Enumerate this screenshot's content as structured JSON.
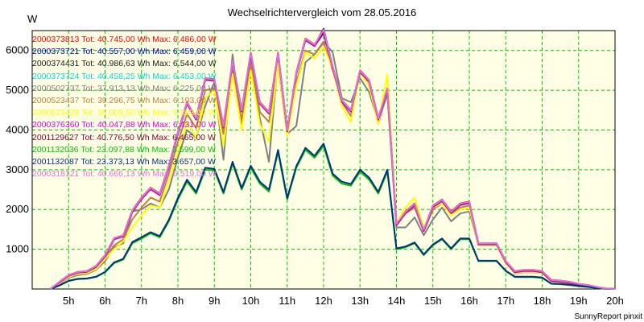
{
  "chart_title": "Wechselrichtervergleich vom 28.05.2016",
  "footer": "SunnyReport pinxit",
  "chart_data": {
    "type": "line",
    "title": "Wechselrichtervergleich vom 28.05.2016",
    "ylabel": "W",
    "xlabel": "",
    "ylim": [
      0,
      6500
    ],
    "xlim": [
      4,
      20
    ],
    "yticks": [
      1000,
      2000,
      3000,
      4000,
      5000,
      6000
    ],
    "xticks": [
      "5h",
      "6h",
      "7h",
      "8h",
      "9h",
      "10h",
      "11h",
      "12h",
      "13h",
      "14h",
      "15h",
      "16h",
      "17h",
      "18h",
      "19h",
      "20h"
    ],
    "grid": true,
    "legend_position": "top-left",
    "x": [
      4.5,
      4.75,
      5,
      5.25,
      5.5,
      5.75,
      6,
      6.25,
      6.5,
      6.75,
      7,
      7.25,
      7.5,
      7.75,
      8,
      8.25,
      8.5,
      8.75,
      9,
      9.25,
      9.5,
      9.75,
      10,
      10.25,
      10.5,
      10.75,
      11,
      11.25,
      11.5,
      11.75,
      12,
      12.25,
      12.5,
      12.75,
      13,
      13.25,
      13.5,
      13.75,
      14,
      14.25,
      14.5,
      14.75,
      15,
      15.25,
      15.5,
      15.75,
      16,
      16.25,
      16.5,
      16.75,
      17,
      17.25,
      17.5,
      17.75,
      18,
      18.25,
      18.5,
      18.75,
      19,
      19.25,
      19.5,
      19.75,
      20
    ],
    "series": [
      {
        "name": "2000373813 Tot: 40.745,00 Wh Max: 6.486,00 W",
        "color": "#ff0000",
        "values": [
          0,
          180,
          350,
          430,
          450,
          580,
          850,
          1280,
          1350,
          1980,
          2300,
          2550,
          2400,
          3100,
          3950,
          4700,
          4300,
          5300,
          5280,
          4100,
          5750,
          4500,
          5950,
          4700,
          4450,
          5950,
          4000,
          5450,
          6300,
          6150,
          6480,
          5600,
          4750,
          4500,
          5500,
          5250,
          4300,
          5050,
          1650,
          1950,
          2150,
          1500,
          2100,
          2250,
          1950,
          2150,
          2200,
          1150,
          1150,
          1150,
          700,
          450,
          480,
          480,
          450,
          230,
          210,
          180,
          130,
          100,
          50,
          10,
          0
        ]
      },
      {
        "name": "2000373721 Tot: 40.557,00 Wh Max: 6.459,00 W",
        "color": "#0000b0",
        "values": [
          0,
          170,
          340,
          420,
          440,
          560,
          830,
          1260,
          1330,
          1950,
          2270,
          2520,
          2370,
          3070,
          3920,
          4670,
          4270,
          5270,
          5250,
          4070,
          5720,
          4470,
          5920,
          4670,
          4420,
          5920,
          3970,
          5420,
          6270,
          6120,
          6459,
          5570,
          4720,
          4470,
          5470,
          5220,
          4270,
          5020,
          1620,
          1920,
          2120,
          1470,
          2070,
          2220,
          1920,
          2120,
          2170,
          1130,
          1130,
          1130,
          680,
          430,
          460,
          460,
          430,
          210,
          190,
          160,
          120,
          90,
          45,
          10,
          0
        ]
      },
      {
        "name": "2000374431 Tot: 40.986,63 Wh Max: 6.544,00 W",
        "color": "#1a1a1a",
        "values": [
          0,
          175,
          345,
          425,
          445,
          570,
          840,
          1270,
          1340,
          1960,
          2280,
          2530,
          2380,
          3080,
          3930,
          4680,
          4280,
          5280,
          5260,
          4080,
          5730,
          4480,
          5930,
          4680,
          4430,
          5930,
          3980,
          5430,
          6280,
          6130,
          6544,
          5580,
          4730,
          4480,
          5480,
          5230,
          4280,
          5030,
          1630,
          1930,
          2130,
          1480,
          2080,
          2230,
          1930,
          2130,
          2180,
          1140,
          1140,
          1140,
          690,
          440,
          470,
          470,
          440,
          220,
          200,
          170,
          125,
          95,
          48,
          10,
          0
        ]
      },
      {
        "name": "2000373724 Tot: 40.458,25 Wh Max: 6.453,00 W",
        "color": "#00dcdc",
        "values": [
          0,
          165,
          335,
          415,
          435,
          555,
          825,
          1255,
          1325,
          1945,
          2265,
          2515,
          2365,
          3065,
          3915,
          4665,
          4265,
          5265,
          5245,
          4065,
          5715,
          4465,
          5915,
          4665,
          4415,
          5915,
          3965,
          5415,
          6265,
          6115,
          6453,
          5565,
          4715,
          4465,
          5465,
          5215,
          4265,
          5015,
          1615,
          1915,
          2115,
          1465,
          2065,
          2215,
          1915,
          2115,
          2165,
          1125,
          1125,
          1125,
          675,
          425,
          455,
          455,
          425,
          205,
          185,
          155,
          115,
          85,
          42,
          10,
          0
        ]
      },
      {
        "name": "2000502737 Tot: 37.913,13 Wh Max: 6.225,00 W",
        "color": "#808080",
        "values": [
          0,
          120,
          280,
          350,
          380,
          480,
          700,
          1050,
          1150,
          1950,
          2000,
          2150,
          2050,
          2500,
          3300,
          4000,
          3800,
          4600,
          5200,
          3250,
          5900,
          4100,
          5700,
          4300,
          3200,
          5800,
          3900,
          4100,
          5700,
          5900,
          6225,
          5950,
          4800,
          4700,
          5300,
          4950,
          4200,
          4900,
          1550,
          1550,
          1800,
          1350,
          1750,
          2050,
          1700,
          1900,
          1950,
          1120,
          1120,
          1120,
          650,
          390,
          420,
          420,
          400,
          190,
          170,
          140,
          100,
          70,
          35,
          5,
          0
        ]
      },
      {
        "name": "2000523437 Tot: 39.296,75 Wh Max: 6.193,00 W",
        "color": "#c08040",
        "values": [
          0,
          150,
          320,
          400,
          420,
          540,
          800,
          1100,
          1250,
          1750,
          2050,
          2300,
          2200,
          2900,
          3700,
          4400,
          4050,
          5000,
          5050,
          3900,
          5500,
          4250,
          5650,
          4450,
          4200,
          5650,
          3850,
          5200,
          6000,
          5900,
          6193,
          5500,
          4700,
          4350,
          5450,
          5200,
          4150,
          5000,
          1600,
          1900,
          2050,
          1450,
          2000,
          2150,
          1900,
          2050,
          2100,
          1110,
          1110,
          1110,
          680,
          420,
          450,
          450,
          420,
          200,
          180,
          150,
          110,
          80,
          40,
          8,
          0
        ]
      },
      {
        "name": "2000523439 Tot: 38.009,50 Wh Max: 6.083,00 W",
        "color": "#ffff00",
        "values": [
          0,
          140,
          300,
          380,
          400,
          500,
          750,
          1000,
          1200,
          1550,
          1850,
          2100,
          2050,
          2700,
          3450,
          4200,
          3800,
          4800,
          5000,
          3600,
          5400,
          4000,
          5500,
          4150,
          3700,
          5700,
          3850,
          5100,
          5950,
          5800,
          6083,
          5550,
          4600,
          4200,
          5450,
          5100,
          4150,
          5400,
          1650,
          2050,
          2300,
          1550,
          2050,
          2150,
          1850,
          2000,
          2050,
          1100,
          1100,
          1100,
          650,
          400,
          430,
          430,
          400,
          190,
          170,
          140,
          100,
          70,
          35,
          5,
          0
        ]
      },
      {
        "name": "2000376360 Tot: 40.047,88 Wh Max: 6.431,00 W",
        "color": "#dd00dd",
        "values": [
          0,
          160,
          330,
          410,
          430,
          550,
          820,
          1250,
          1320,
          1940,
          2260,
          2510,
          2360,
          3060,
          3910,
          4660,
          4260,
          5260,
          5240,
          4060,
          5710,
          4460,
          5910,
          4660,
          4410,
          5910,
          3960,
          5410,
          6260,
          6110,
          6431,
          5560,
          4710,
          4460,
          5460,
          5210,
          4260,
          5010,
          1610,
          1910,
          2110,
          1460,
          2060,
          2210,
          1910,
          2110,
          2160,
          1120,
          1120,
          1120,
          670,
          420,
          450,
          450,
          420,
          200,
          180,
          150,
          110,
          80,
          40,
          8,
          0
        ]
      },
      {
        "name": "2001129627 Tot: 40.776,50 Wh Max: 6.465,00 W",
        "color": "#800040",
        "values": [
          0,
          172,
          342,
          422,
          442,
          565,
          835,
          1265,
          1335,
          1955,
          2275,
          2525,
          2375,
          3075,
          3925,
          4675,
          4275,
          5275,
          5255,
          4075,
          5725,
          4475,
          5925,
          4675,
          4425,
          5925,
          3975,
          5425,
          6275,
          6125,
          6465,
          5575,
          4725,
          4475,
          5475,
          5225,
          4275,
          5025,
          1625,
          1925,
          2125,
          1475,
          2075,
          2225,
          1925,
          2125,
          2175,
          1135,
          1135,
          1135,
          685,
          435,
          465,
          465,
          435,
          215,
          195,
          165,
          120,
          90,
          45,
          10,
          0
        ]
      },
      {
        "name": "2001132036 Tot: 23.097,88 Wh Max: 3.599,00 W",
        "color": "#00c000",
        "values": [
          0,
          90,
          200,
          250,
          260,
          300,
          420,
          650,
          740,
          1150,
          1270,
          1400,
          1300,
          1700,
          2250,
          2700,
          2400,
          3000,
          2980,
          2400,
          3150,
          2500,
          3050,
          2650,
          2450,
          3450,
          2250,
          3050,
          3500,
          3300,
          3599,
          2850,
          2650,
          2600,
          2950,
          2750,
          2400,
          2950,
          1000,
          1050,
          1150,
          850,
          1100,
          1250,
          1000,
          1250,
          1250,
          700,
          700,
          700,
          450,
          300,
          300,
          300,
          280,
          130,
          120,
          100,
          70,
          50,
          25,
          5,
          0
        ]
      },
      {
        "name": "2001132087 Tot: 23.373,13 Wh Max: 3.657,00 W",
        "color": "#003080",
        "values": [
          0,
          92,
          205,
          255,
          265,
          310,
          430,
          670,
          760,
          1180,
          1300,
          1430,
          1330,
          1740,
          2290,
          2750,
          2440,
          3050,
          3020,
          2440,
          3200,
          2540,
          3100,
          2700,
          2500,
          3500,
          2290,
          3090,
          3550,
          3350,
          3657,
          2900,
          2700,
          2640,
          3000,
          2800,
          2440,
          3000,
          1020,
          1070,
          1170,
          870,
          1120,
          1270,
          1020,
          1270,
          1270,
          710,
          710,
          710,
          460,
          310,
          310,
          310,
          290,
          135,
          125,
          105,
          75,
          55,
          28,
          5,
          0
        ]
      },
      {
        "name": "2000318121 Tot: 40.666,13 Wh Max: 6.519,00 W",
        "color": "#e070e0",
        "values": [
          0,
          178,
          348,
          428,
          448,
          575,
          845,
          1275,
          1345,
          1970,
          2290,
          2540,
          2390,
          3090,
          3940,
          4690,
          4290,
          5290,
          5270,
          4090,
          5740,
          4490,
          5940,
          4690,
          4440,
          5940,
          3990,
          5440,
          6290,
          6140,
          6519,
          5590,
          4740,
          4490,
          5490,
          5240,
          4290,
          5040,
          1640,
          1940,
          2140,
          1490,
          2090,
          2240,
          1940,
          2140,
          2190,
          1145,
          1145,
          1145,
          695,
          445,
          475,
          475,
          445,
          225,
          205,
          175,
          128,
          98,
          50,
          10,
          0
        ]
      }
    ]
  }
}
